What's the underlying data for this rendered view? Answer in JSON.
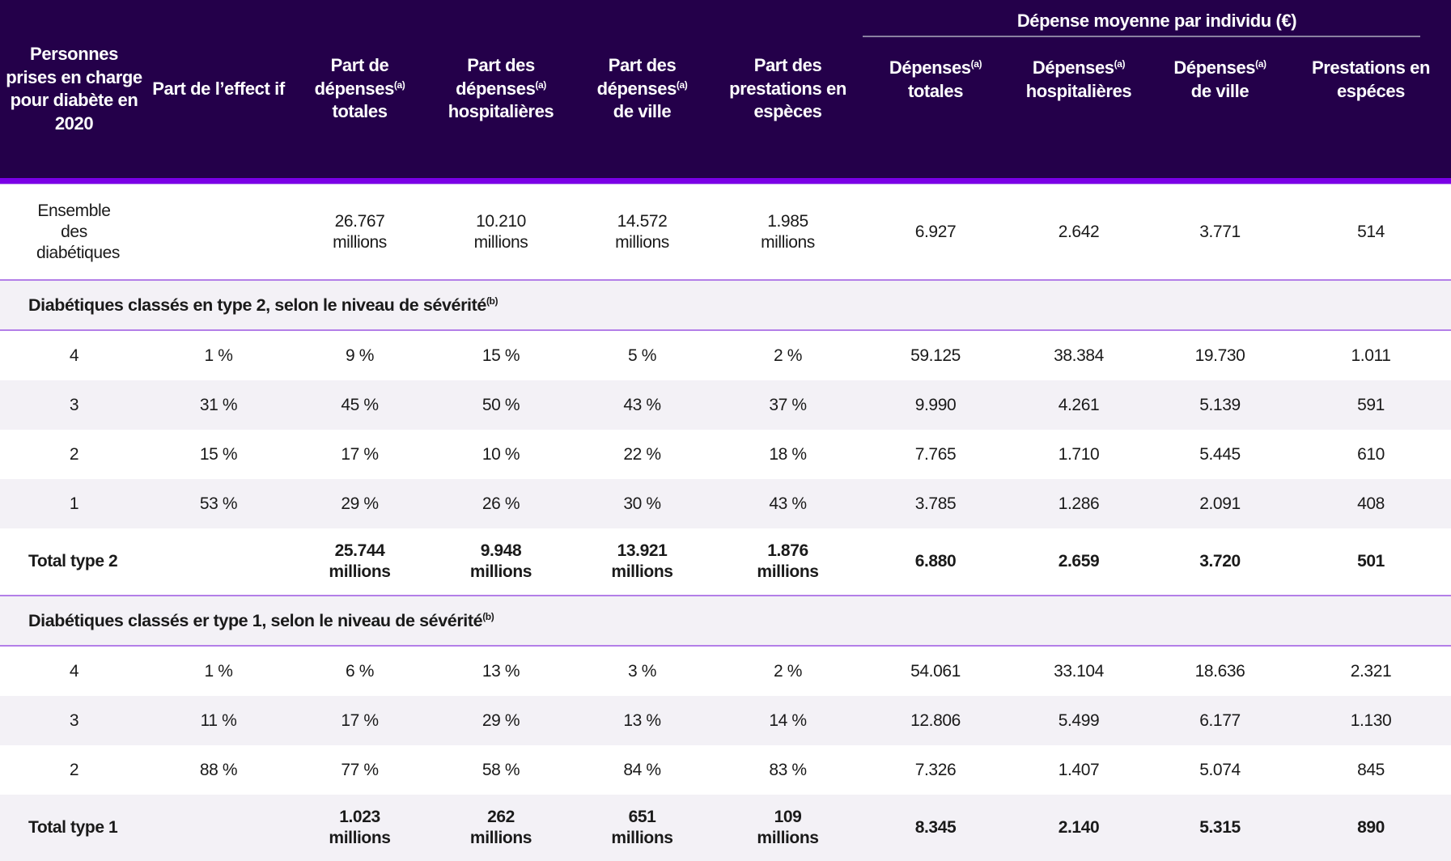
{
  "colors": {
    "header_bg": "#24004a",
    "accent": "#7a00e6",
    "row_alt": "#f3f1f6",
    "divider": "#b37fe8"
  },
  "header": {
    "group_label": "Dépense moyenne par individu (€)",
    "columns": [
      {
        "label": "Personnes prises en charge pour diabète en 2020",
        "sup": ""
      },
      {
        "label": "Part de l’effect if",
        "sup": ""
      },
      {
        "label_pre": "Part de dépenses",
        "sup": "(a)",
        "label_post": "totales"
      },
      {
        "label_pre": "Part des dépenses",
        "sup": "(a)",
        "label_post": "hospitalières"
      },
      {
        "label_pre": "Part des dépenses",
        "sup": "(a)",
        "label_post": "de ville"
      },
      {
        "label": "Part des prestations en espèces",
        "sup": ""
      },
      {
        "label_pre": "Dépenses",
        "sup": "(a)",
        "label_post": "totales"
      },
      {
        "label_pre": "Dépenses",
        "sup": "(a)",
        "label_post": "hospitalières"
      },
      {
        "label_pre": "Dépenses",
        "sup": "(a)",
        "label_post": "de ville"
      },
      {
        "label": "Prestations en espéces",
        "sup": ""
      }
    ]
  },
  "ensemble": {
    "label": "Ensemble des diabétiques",
    "cells": [
      "",
      "26.767",
      "10.210",
      "14.572",
      "1.985",
      "6.927",
      "2.642",
      "3.771",
      "514"
    ],
    "unit": "millions"
  },
  "type2": {
    "section": "Diabétiques classés en type 2, selon le niveau de sévérité",
    "section_sup": "(b)",
    "rows": [
      [
        "4",
        "1 %",
        "9 %",
        "15 %",
        "5 %",
        "2 %",
        "59.125",
        "38.384",
        "19.730",
        "1.011"
      ],
      [
        "3",
        "31 %",
        "45 %",
        "50 %",
        "43 %",
        "37 %",
        "9.990",
        "4.261",
        "5.139",
        "591"
      ],
      [
        "2",
        "15 %",
        "17 %",
        "10 %",
        "22 %",
        "18 %",
        "7.765",
        "1.710",
        "5.445",
        "610"
      ],
      [
        "1",
        "53 %",
        "29 %",
        "26 %",
        "30 %",
        "43 %",
        "3.785",
        "1.286",
        "2.091",
        "408"
      ]
    ],
    "total": {
      "label": "Total type 2",
      "cells": [
        "",
        "25.744",
        "9.948",
        "13.921",
        "1.876",
        "6.880",
        "2.659",
        "3.720",
        "501"
      ]
    }
  },
  "type1": {
    "section": "Diabétiques classés er type 1, selon le niveau de sévérité",
    "section_sup": "(b)",
    "rows": [
      [
        "4",
        "1 %",
        "6 %",
        "13 %",
        "3 %",
        "2 %",
        "54.061",
        "33.104",
        "18.636",
        "2.321"
      ],
      [
        "3",
        "11 %",
        "17 %",
        "29 %",
        "13 %",
        "14 %",
        "12.806",
        "5.499",
        "6.177",
        "1.130"
      ],
      [
        "2",
        "88 %",
        "77 %",
        "58 %",
        "84 %",
        "83 %",
        "7.326",
        "1.407",
        "5.074",
        "845"
      ]
    ],
    "total": {
      "label": "Total type 1",
      "cells": [
        "",
        "1.023",
        "262",
        "651",
        "109",
        "8.345",
        "2.140",
        "5.315",
        "890"
      ]
    }
  }
}
